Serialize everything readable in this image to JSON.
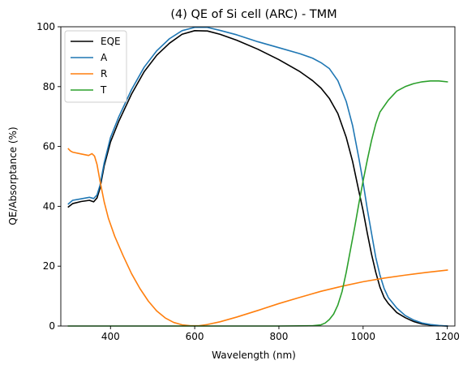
{
  "chart_data": {
    "type": "line",
    "title": "(4) QE of Si cell (ARC) - TMM",
    "xlabel": "Wavelength (nm)",
    "ylabel": "QE/Absorptance (%)",
    "xlim": [
      282,
      1218
    ],
    "ylim": [
      0,
      100
    ],
    "xticks": [
      400,
      600,
      800,
      1000,
      1200
    ],
    "yticks": [
      0,
      20,
      40,
      60,
      80,
      100
    ],
    "grid": false,
    "legend_position": "upper-left",
    "series": [
      {
        "name": "EQE",
        "color": "#000000",
        "points": [
          [
            300,
            39.8
          ],
          [
            310,
            40.9
          ],
          [
            330,
            41.6
          ],
          [
            350,
            42.0
          ],
          [
            360,
            41.5
          ],
          [
            368,
            42.8
          ],
          [
            375,
            46.0
          ],
          [
            385,
            53.5
          ],
          [
            400,
            61.5
          ],
          [
            420,
            68.5
          ],
          [
            450,
            77.5
          ],
          [
            480,
            85.0
          ],
          [
            510,
            90.5
          ],
          [
            540,
            94.5
          ],
          [
            570,
            97.5
          ],
          [
            600,
            98.7
          ],
          [
            630,
            98.6
          ],
          [
            660,
            97.5
          ],
          [
            700,
            95.5
          ],
          [
            750,
            92.5
          ],
          [
            800,
            89.0
          ],
          [
            850,
            85.0
          ],
          [
            880,
            82.0
          ],
          [
            900,
            79.5
          ],
          [
            920,
            76.0
          ],
          [
            940,
            71.0
          ],
          [
            960,
            63.0
          ],
          [
            975,
            55.0
          ],
          [
            990,
            45.0
          ],
          [
            1000,
            38.5
          ],
          [
            1010,
            31.0
          ],
          [
            1020,
            24.0
          ],
          [
            1030,
            18.0
          ],
          [
            1040,
            13.0
          ],
          [
            1050,
            9.5
          ],
          [
            1060,
            7.5
          ],
          [
            1080,
            4.5
          ],
          [
            1100,
            2.8
          ],
          [
            1120,
            1.5
          ],
          [
            1140,
            0.7
          ],
          [
            1160,
            0.3
          ],
          [
            1180,
            0.1
          ],
          [
            1200,
            0.0
          ]
        ]
      },
      {
        "name": "A",
        "color": "#1f77b4",
        "points": [
          [
            300,
            40.8
          ],
          [
            310,
            42.0
          ],
          [
            330,
            42.5
          ],
          [
            350,
            43.0
          ],
          [
            360,
            42.6
          ],
          [
            368,
            43.8
          ],
          [
            375,
            47.0
          ],
          [
            385,
            54.5
          ],
          [
            400,
            63.0
          ],
          [
            420,
            70.0
          ],
          [
            450,
            79.0
          ],
          [
            480,
            86.5
          ],
          [
            510,
            92.0
          ],
          [
            540,
            96.0
          ],
          [
            570,
            98.7
          ],
          [
            600,
            99.8
          ],
          [
            630,
            99.8
          ],
          [
            660,
            98.8
          ],
          [
            700,
            97.3
          ],
          [
            750,
            95.0
          ],
          [
            800,
            93.0
          ],
          [
            850,
            91.0
          ],
          [
            880,
            89.5
          ],
          [
            900,
            88.0
          ],
          [
            920,
            86.0
          ],
          [
            940,
            82.0
          ],
          [
            960,
            75.0
          ],
          [
            975,
            67.0
          ],
          [
            990,
            56.0
          ],
          [
            1000,
            48.0
          ],
          [
            1010,
            39.0
          ],
          [
            1020,
            31.0
          ],
          [
            1030,
            23.0
          ],
          [
            1040,
            17.0
          ],
          [
            1050,
            12.5
          ],
          [
            1060,
            9.5
          ],
          [
            1080,
            6.0
          ],
          [
            1100,
            3.5
          ],
          [
            1120,
            2.0
          ],
          [
            1140,
            1.0
          ],
          [
            1160,
            0.5
          ],
          [
            1180,
            0.2
          ],
          [
            1200,
            0.0
          ]
        ]
      },
      {
        "name": "R",
        "color": "#ff7f0e",
        "points": [
          [
            300,
            59.2
          ],
          [
            305,
            58.5
          ],
          [
            310,
            58.1
          ],
          [
            330,
            57.5
          ],
          [
            348,
            57.0
          ],
          [
            356,
            57.6
          ],
          [
            362,
            56.8
          ],
          [
            368,
            54.0
          ],
          [
            375,
            48.5
          ],
          [
            385,
            41.5
          ],
          [
            395,
            36.0
          ],
          [
            410,
            30.0
          ],
          [
            430,
            23.5
          ],
          [
            450,
            17.5
          ],
          [
            470,
            12.5
          ],
          [
            490,
            8.3
          ],
          [
            510,
            5.0
          ],
          [
            530,
            2.7
          ],
          [
            550,
            1.2
          ],
          [
            570,
            0.4
          ],
          [
            590,
            0.1
          ],
          [
            610,
            0.1
          ],
          [
            630,
            0.5
          ],
          [
            660,
            1.4
          ],
          [
            700,
            3.0
          ],
          [
            750,
            5.2
          ],
          [
            800,
            7.5
          ],
          [
            850,
            9.6
          ],
          [
            900,
            11.6
          ],
          [
            950,
            13.3
          ],
          [
            1000,
            14.8
          ],
          [
            1050,
            16.0
          ],
          [
            1100,
            17.0
          ],
          [
            1150,
            17.9
          ],
          [
            1200,
            18.7
          ]
        ]
      },
      {
        "name": "T",
        "color": "#2ca02c",
        "points": [
          [
            300,
            0
          ],
          [
            800,
            0
          ],
          [
            880,
            0.1
          ],
          [
            900,
            0.4
          ],
          [
            910,
            1.0
          ],
          [
            920,
            2.2
          ],
          [
            930,
            4.0
          ],
          [
            940,
            7.0
          ],
          [
            950,
            11.5
          ],
          [
            960,
            18.0
          ],
          [
            970,
            25.5
          ],
          [
            980,
            33.0
          ],
          [
            990,
            41.0
          ],
          [
            1000,
            48.5
          ],
          [
            1010,
            55.5
          ],
          [
            1020,
            62.0
          ],
          [
            1030,
            67.5
          ],
          [
            1040,
            71.5
          ],
          [
            1060,
            75.5
          ],
          [
            1080,
            78.5
          ],
          [
            1100,
            80.0
          ],
          [
            1120,
            81.0
          ],
          [
            1140,
            81.6
          ],
          [
            1160,
            81.9
          ],
          [
            1180,
            81.9
          ],
          [
            1200,
            81.6
          ]
        ]
      }
    ]
  }
}
